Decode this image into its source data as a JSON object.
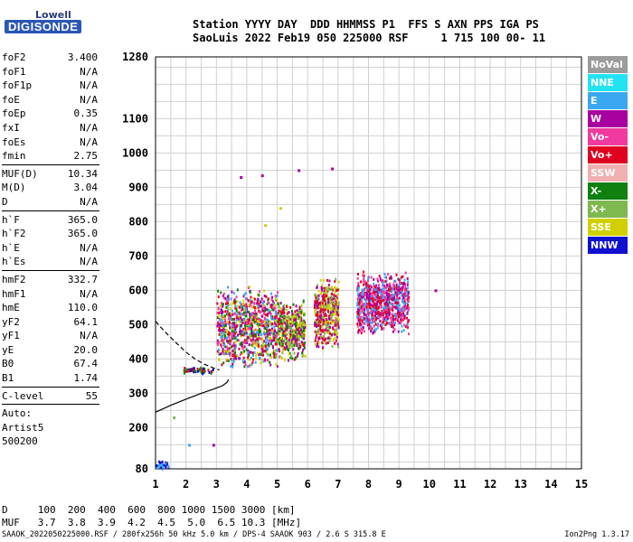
{
  "logo": {
    "line1": "Lowell",
    "line2": "DIGISONDE"
  },
  "header": {
    "line1": "Station YYYY DAY  DDD HHMMSS P1  FFS S AXN PPS IGA PS",
    "line2": "SaoLuis 2022 Feb19 050 225000 RSF     1 715 100 00- 11"
  },
  "params": [
    [
      {
        "name": "foF2",
        "value": "3.400"
      },
      {
        "name": "foF1",
        "value": "N/A"
      },
      {
        "name": "foF1p",
        "value": "N/A"
      },
      {
        "name": "foE",
        "value": "N/A"
      },
      {
        "name": "foEp",
        "value": "0.35"
      },
      {
        "name": "fxI",
        "value": "N/A"
      },
      {
        "name": "foEs",
        "value": "N/A"
      },
      {
        "name": "fmin",
        "value": "2.75"
      }
    ],
    [
      {
        "name": "MUF(D)",
        "value": "10.34"
      },
      {
        "name": "M(D)",
        "value": "3.04"
      },
      {
        "name": "D",
        "value": "N/A"
      }
    ],
    [
      {
        "name": "h`F",
        "value": "365.0"
      },
      {
        "name": "h`F2",
        "value": "365.0"
      },
      {
        "name": "h`E",
        "value": "N/A"
      },
      {
        "name": "h`Es",
        "value": "N/A"
      }
    ],
    [
      {
        "name": "hmF2",
        "value": "332.7"
      },
      {
        "name": "hmF1",
        "value": "N/A"
      },
      {
        "name": "hmE",
        "value": "110.0"
      },
      {
        "name": "yF2",
        "value": "64.1"
      },
      {
        "name": "yF1",
        "value": "N/A"
      },
      {
        "name": "yE",
        "value": "20.0"
      },
      {
        "name": "B0",
        "value": "67.4"
      },
      {
        "name": "B1",
        "value": "1.74"
      }
    ],
    [
      {
        "name": "C-level",
        "value": "55"
      }
    ]
  ],
  "autoscale": {
    "line1": "Auto:",
    "line2": "Artist5",
    "line3": "500200"
  },
  "legend": [
    {
      "label": "NoVal",
      "color": "#9c9c9c"
    },
    {
      "label": "NNE",
      "color": "#22e3f4"
    },
    {
      "label": "E",
      "color": "#3aa8f0"
    },
    {
      "label": "W",
      "color": "#a800a0"
    },
    {
      "label": "Vo-",
      "color": "#f03aa0"
    },
    {
      "label": "Vo+",
      "color": "#e00020"
    },
    {
      "label": "SSW",
      "color": "#f0b0b0"
    },
    {
      "label": "X-",
      "color": "#108010"
    },
    {
      "label": "X+",
      "color": "#80b850"
    },
    {
      "label": "SSE",
      "color": "#d0d000"
    },
    {
      "label": "NNW",
      "color": "#1010d0"
    }
  ],
  "bottom": {
    "line1": "D     100  200  400  600  800 1000 1500 3000 [km]",
    "line2": "MUF   3.7  3.8  3.9  4.2  4.5  5.0  6.5 10.3 [MHz]"
  },
  "footer": "SAAOK_2022050225000.RSF / 280fx256h 50 kHz 5.0 km / DPS-4 SAAOK 903 / 2.6 S 315.8 E",
  "version": "Ion2Png 1.3.17",
  "chart_data": {
    "type": "scatter",
    "x_ticks": [
      1,
      2,
      3,
      4,
      5,
      6,
      7,
      8,
      9,
      10,
      11,
      12,
      13,
      14,
      15
    ],
    "y_ticks": [
      80,
      200,
      300,
      400,
      500,
      600,
      700,
      800,
      900,
      1000,
      1100,
      1280
    ],
    "xlim": [
      1,
      15
    ],
    "ylim": [
      80,
      1280
    ],
    "grid": true,
    "traces": [
      {
        "name": "F2 profile",
        "style": "solid",
        "x": [
          1.0,
          1.5,
          2.0,
          2.5,
          2.9,
          3.2,
          3.35,
          3.4
        ],
        "y": [
          245,
          265,
          283,
          300,
          312,
          322,
          332,
          340
        ]
      },
      {
        "name": "O trace",
        "style": "dashed",
        "x": [
          1.0,
          1.3,
          1.7,
          2.0,
          2.3,
          2.6,
          2.9,
          3.1
        ],
        "y": [
          510,
          480,
          445,
          420,
          400,
          385,
          374,
          368
        ]
      }
    ],
    "echo_clusters": [
      {
        "x": [
          3.0,
          5.0
        ],
        "y": [
          370,
          620
        ],
        "colors": [
          "#a800a0",
          "#e00020",
          "#d0d000",
          "#108010",
          "#3aa8f0",
          "#f03aa0"
        ]
      },
      {
        "x": [
          5.0,
          5.9
        ],
        "y": [
          390,
          580
        ],
        "colors": [
          "#d0d000",
          "#a800a0",
          "#e00020",
          "#108010",
          "#80b850"
        ]
      },
      {
        "x": [
          6.2,
          7.0
        ],
        "y": [
          430,
          640
        ],
        "colors": [
          "#a800a0",
          "#e00020",
          "#d0d000",
          "#80b850"
        ]
      },
      {
        "x": [
          7.6,
          9.3
        ],
        "y": [
          470,
          660
        ],
        "colors": [
          "#a800a0",
          "#e00020",
          "#f03aa0",
          "#3aa8f0"
        ]
      },
      {
        "x": [
          1.0,
          1.4
        ],
        "y": [
          80,
          110
        ],
        "colors": [
          "#1010d0",
          "#3aa8f0"
        ]
      },
      {
        "x": [
          1.9,
          2.9
        ],
        "y": [
          360,
          380
        ],
        "colors": [
          "#1010d0",
          "#108010",
          "#e00020"
        ]
      }
    ],
    "sparse_points": [
      {
        "x": 3.8,
        "y": 930,
        "color": "#a800a0"
      },
      {
        "x": 4.5,
        "y": 935,
        "color": "#a800a0"
      },
      {
        "x": 5.7,
        "y": 950,
        "color": "#a800a0"
      },
      {
        "x": 6.8,
        "y": 955,
        "color": "#a800a0"
      },
      {
        "x": 10.2,
        "y": 600,
        "color": "#a800a0"
      },
      {
        "x": 2.9,
        "y": 150,
        "color": "#a800a0"
      },
      {
        "x": 1.6,
        "y": 230,
        "color": "#80b850"
      },
      {
        "x": 2.1,
        "y": 150,
        "color": "#3aa8f0"
      },
      {
        "x": 5.1,
        "y": 840,
        "color": "#d0d000"
      },
      {
        "x": 4.6,
        "y": 790,
        "color": "#d0d000"
      }
    ]
  }
}
